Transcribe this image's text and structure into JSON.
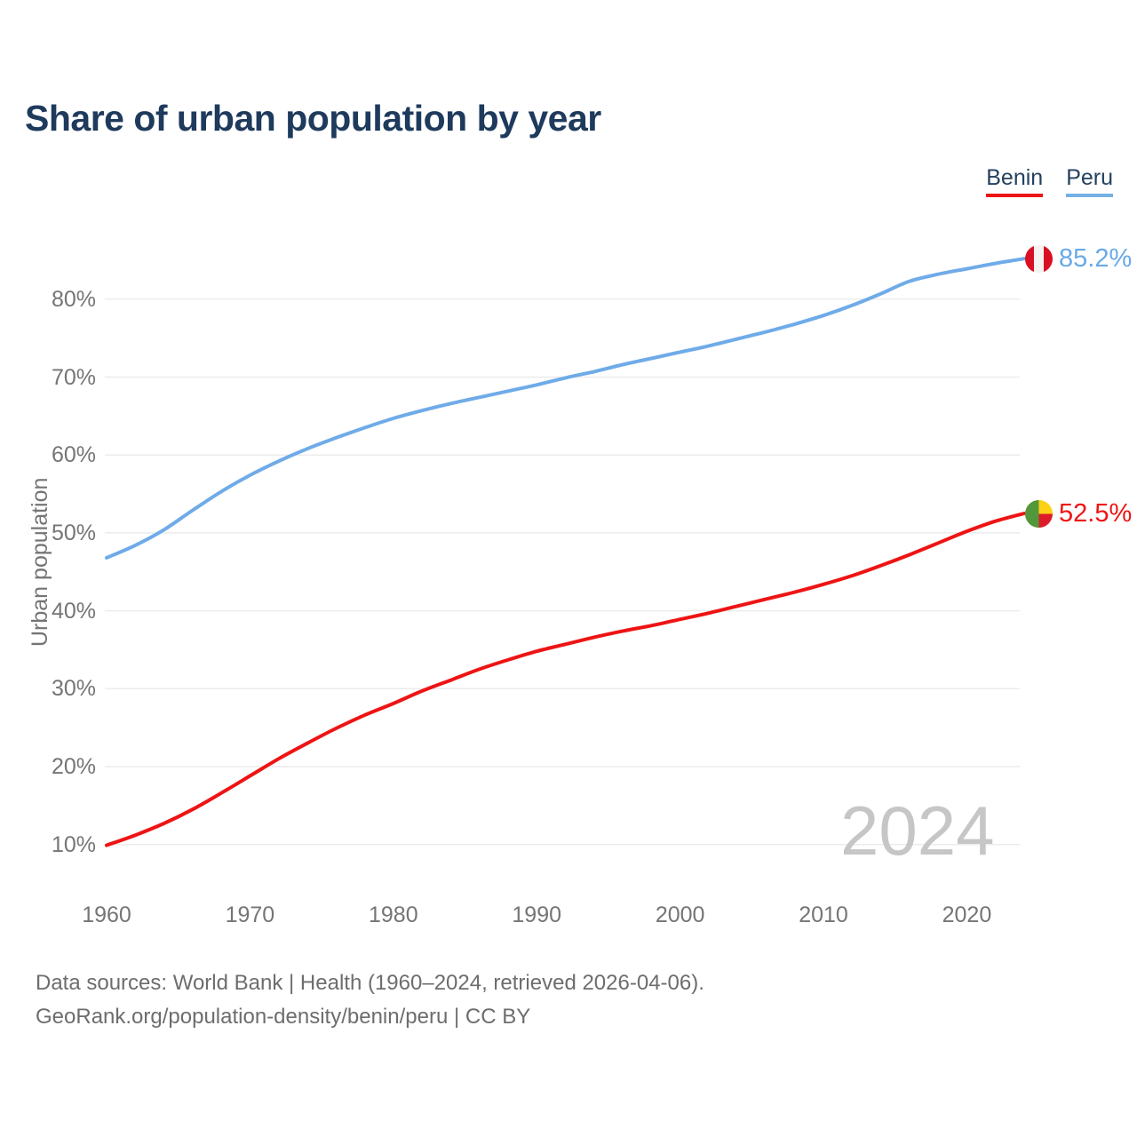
{
  "header": {
    "title": "Share of urban population by year"
  },
  "legend": [
    {
      "label": "Benin",
      "color": "#ee1414"
    },
    {
      "label": "Peru",
      "color": "#74b0e4"
    }
  ],
  "chart_data": {
    "type": "line",
    "title": "Share of urban population by year",
    "xlabel": "",
    "ylabel": "Urban population",
    "x_ticks": [
      "1960",
      "1970",
      "1980",
      "1990",
      "2000",
      "2010",
      "2020"
    ],
    "y_ticks": [
      "10%",
      "20%",
      "30%",
      "40%",
      "50%",
      "60%",
      "70%",
      "80%"
    ],
    "xlim": [
      1960,
      2024
    ],
    "ylim": [
      6,
      88
    ],
    "grid": "horizontal",
    "legend_position": "top-right",
    "watermark": "2024",
    "series": [
      {
        "name": "Peru",
        "color": "#6fabe8",
        "end_label": "85.2%",
        "flag_icon": "peru-flag-icon",
        "x": [
          1960,
          1962,
          1964,
          1966,
          1968,
          1970,
          1972,
          1974,
          1976,
          1978,
          1980,
          1982,
          1984,
          1986,
          1988,
          1990,
          1992,
          1994,
          1996,
          1998,
          2000,
          2002,
          2004,
          2006,
          2008,
          2010,
          2012,
          2014,
          2016,
          2018,
          2020,
          2022,
          2024
        ],
        "values": [
          46.8,
          48.4,
          50.4,
          52.9,
          55.3,
          57.4,
          59.2,
          60.8,
          62.2,
          63.5,
          64.7,
          65.7,
          66.6,
          67.4,
          68.2,
          69.0,
          69.9,
          70.7,
          71.6,
          72.4,
          73.2,
          74.0,
          74.9,
          75.8,
          76.8,
          77.9,
          79.2,
          80.7,
          82.3,
          83.2,
          83.9,
          84.6,
          85.2
        ]
      },
      {
        "name": "Benin",
        "color": "#ee1414",
        "end_label": "52.5%",
        "flag_icon": "benin-flag-icon",
        "x": [
          1960,
          1962,
          1964,
          1966,
          1968,
          1970,
          1972,
          1974,
          1976,
          1978,
          1980,
          1982,
          1984,
          1986,
          1988,
          1990,
          1992,
          1994,
          1996,
          1998,
          2000,
          2002,
          2004,
          2006,
          2008,
          2010,
          2012,
          2014,
          2016,
          2018,
          2020,
          2022,
          2024
        ],
        "values": [
          9.9,
          11.2,
          12.7,
          14.5,
          16.6,
          18.8,
          21.0,
          23.0,
          24.9,
          26.6,
          28.1,
          29.7,
          31.1,
          32.5,
          33.7,
          34.8,
          35.7,
          36.6,
          37.4,
          38.1,
          38.9,
          39.7,
          40.6,
          41.5,
          42.4,
          43.4,
          44.5,
          45.8,
          47.2,
          48.7,
          50.2,
          51.5,
          52.5
        ]
      }
    ]
  },
  "footer": {
    "line1": "Data sources: World Bank | Health (1960–2024, retrieved 2026-04-06).",
    "line2": "GeoRank.org/population-density/benin/peru | CC BY"
  }
}
